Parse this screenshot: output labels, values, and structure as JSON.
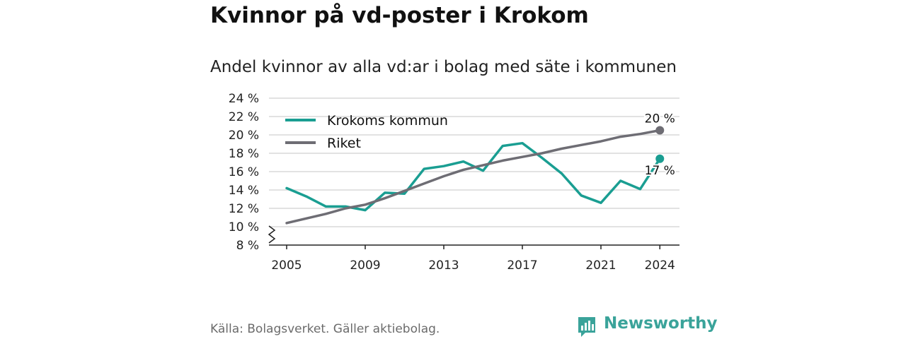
{
  "title": "Kvinnor på vd-poster i Krokom",
  "subtitle": "Andel kvinnor av alla vd:ar i bolag med säte i kommunen",
  "source": "Källa: Bolagsverket. Gäller aktiebolag.",
  "brand": {
    "name": "Newsworthy",
    "color": "#3aa39a",
    "icon": "newsworthy-logo-icon"
  },
  "colors": {
    "krokom": "#1a9e92",
    "riket": "#6e6d74",
    "grid": "#d9d9d9",
    "axis": "#222222"
  },
  "chart_data": {
    "type": "line",
    "title": "Kvinnor på vd-poster i Krokom",
    "subtitle": "Andel kvinnor av alla vd:ar i bolag med säte i kommunen",
    "xlabel": "",
    "ylabel": "",
    "x": [
      2005,
      2006,
      2007,
      2008,
      2009,
      2010,
      2011,
      2012,
      2013,
      2014,
      2015,
      2016,
      2017,
      2018,
      2019,
      2020,
      2021,
      2022,
      2023,
      2024
    ],
    "x_ticks": [
      2005,
      2009,
      2013,
      2017,
      2021,
      2024
    ],
    "y_ticks": [
      8,
      10,
      12,
      14,
      16,
      18,
      20,
      22,
      24
    ],
    "y_tick_labels": [
      "8 %",
      "10 %",
      "12 %",
      "14 %",
      "16 %",
      "18 %",
      "20 %",
      "22 %",
      "24 %"
    ],
    "ylim": [
      8,
      24
    ],
    "axis_break": true,
    "grid": true,
    "legend_position": "top-left",
    "series": [
      {
        "name": "Krokoms kommun",
        "color": "#1a9e92",
        "values": [
          14.2,
          13.3,
          12.2,
          12.2,
          11.8,
          13.7,
          13.6,
          16.3,
          16.6,
          17.1,
          16.1,
          18.8,
          19.1,
          17.5,
          15.8,
          13.4,
          12.6,
          15.0,
          14.1,
          17.4
        ],
        "end_label": "17 %"
      },
      {
        "name": "Riket",
        "color": "#6e6d74",
        "values": [
          10.4,
          10.9,
          11.4,
          12.0,
          12.4,
          13.1,
          13.9,
          14.7,
          15.5,
          16.2,
          16.7,
          17.2,
          17.6,
          18.0,
          18.5,
          18.9,
          19.3,
          19.8,
          20.1,
          20.5
        ],
        "end_label": "20 %"
      }
    ]
  }
}
